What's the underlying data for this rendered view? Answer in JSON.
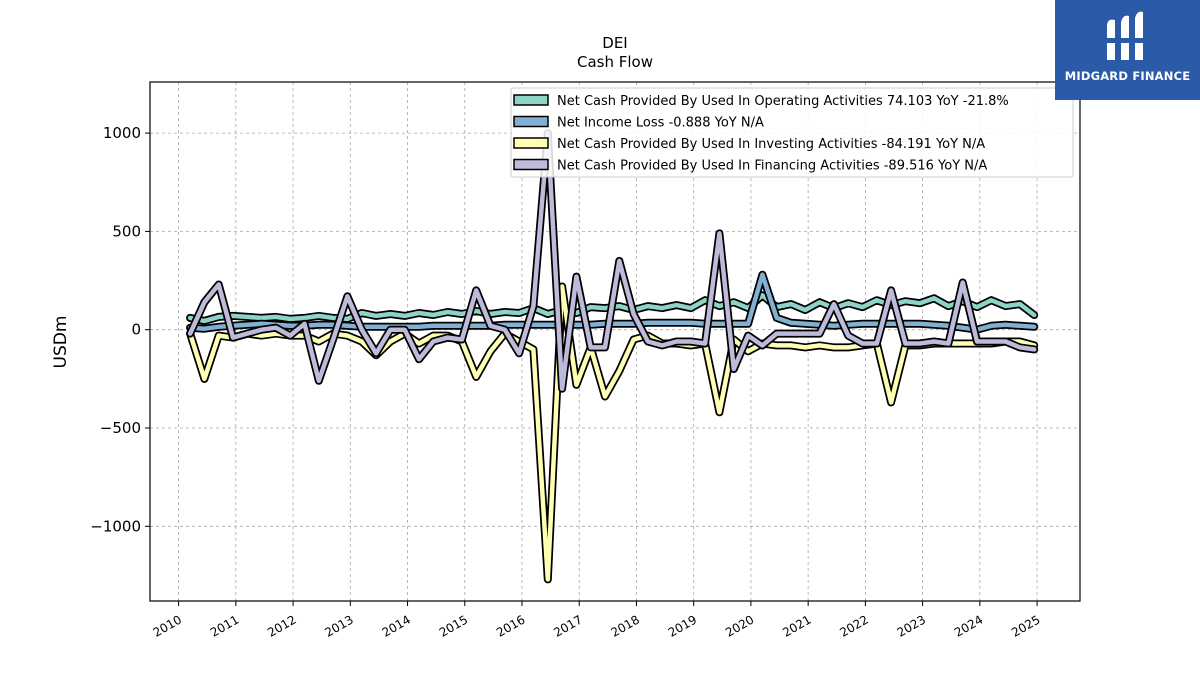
{
  "logo": {
    "text": "MIDGARD FINANCE",
    "icon": "midgard-logo-icon",
    "color": "#2a5aa8"
  },
  "chart_data": {
    "type": "line",
    "title": "DEI",
    "subtitle": "Cash Flow",
    "xlabel": "",
    "ylabel": "USDm",
    "xlim": [
      2009.5,
      2025.75
    ],
    "ylim": [
      -1380,
      1260
    ],
    "xticks": [
      "2010",
      "2011",
      "2012",
      "2013",
      "2014",
      "2015",
      "2016",
      "2017",
      "2018",
      "2019",
      "2020",
      "2021",
      "2022",
      "2023",
      "2024",
      "2025"
    ],
    "yticks": [
      {
        "value": 1000,
        "label": "1000"
      },
      {
        "value": 500,
        "label": "500"
      },
      {
        "value": 0,
        "label": "0"
      },
      {
        "value": -500,
        "label": "−500"
      },
      {
        "value": -1000,
        "label": "−1000"
      }
    ],
    "grid": true,
    "legend_position": "top-right",
    "x": [
      2010.2,
      2010.45,
      2010.7,
      2010.95,
      2011.2,
      2011.45,
      2011.7,
      2011.95,
      2012.2,
      2012.45,
      2012.7,
      2012.95,
      2013.2,
      2013.45,
      2013.7,
      2013.95,
      2014.2,
      2014.45,
      2014.7,
      2014.95,
      2015.2,
      2015.45,
      2015.7,
      2015.95,
      2016.2,
      2016.45,
      2016.7,
      2016.95,
      2017.2,
      2017.45,
      2017.7,
      2017.95,
      2018.2,
      2018.45,
      2018.7,
      2018.95,
      2019.2,
      2019.45,
      2019.7,
      2019.95,
      2020.2,
      2020.45,
      2020.7,
      2020.95,
      2021.2,
      2021.45,
      2021.7,
      2021.95,
      2022.2,
      2022.45,
      2022.7,
      2022.95,
      2023.2,
      2023.45,
      2023.7,
      2023.95,
      2024.2,
      2024.45,
      2024.7,
      2024.95
    ],
    "series": [
      {
        "name": "Net Cash Provided By Used In Operating Activities  74.103 YoY -21.8%",
        "color": "#8dd3c7",
        "values": [
          60,
          45,
          65,
          70,
          65,
          60,
          65,
          55,
          60,
          70,
          60,
          55,
          85,
          70,
          80,
          70,
          85,
          75,
          90,
          80,
          95,
          80,
          90,
          85,
          110,
          80,
          100,
          85,
          115,
          110,
          120,
          100,
          120,
          110,
          125,
          110,
          150,
          120,
          140,
          110,
          175,
          115,
          130,
          100,
          140,
          110,
          135,
          115,
          150,
          125,
          145,
          135,
          160,
          120,
          145,
          115,
          150,
          120,
          130,
          75
        ]
      },
      {
        "name": "Net Income Loss  -0.888 YoY N/A",
        "color": "#80b1d3",
        "values": [
          10,
          5,
          15,
          20,
          25,
          30,
          25,
          20,
          20,
          25,
          25,
          20,
          15,
          15,
          15,
          15,
          15,
          20,
          20,
          20,
          20,
          20,
          25,
          25,
          25,
          25,
          25,
          25,
          25,
          30,
          30,
          30,
          35,
          35,
          35,
          35,
          30,
          30,
          30,
          30,
          280,
          60,
          35,
          30,
          25,
          20,
          25,
          30,
          30,
          30,
          30,
          30,
          25,
          20,
          10,
          0,
          20,
          25,
          20,
          15
        ]
      },
      {
        "name": "Net Cash Provided By Used In Investing Activities  -84.191 YoY N/A",
        "color": "#ffffb3",
        "values": [
          -20,
          -250,
          -30,
          -40,
          -20,
          -30,
          -20,
          -30,
          -30,
          -60,
          -20,
          -30,
          -60,
          -130,
          -60,
          -20,
          -70,
          -30,
          -30,
          -60,
          -240,
          -110,
          -20,
          -60,
          -100,
          -1270,
          220,
          -280,
          -90,
          -340,
          -210,
          -50,
          -30,
          -70,
          -70,
          -80,
          -70,
          -420,
          -50,
          -110,
          -70,
          -80,
          -80,
          -90,
          -80,
          -90,
          -90,
          -80,
          -70,
          -370,
          -80,
          -80,
          -70,
          -70,
          -70,
          -70,
          -70,
          -60,
          -60,
          -80
        ]
      },
      {
        "name": "Net Cash Provided By Used In Financing Activities  -89.516 YoY N/A",
        "color": "#bebada",
        "values": [
          -20,
          140,
          230,
          -40,
          -20,
          0,
          10,
          -30,
          30,
          -260,
          -50,
          170,
          0,
          -120,
          0,
          0,
          -150,
          -60,
          -40,
          -50,
          200,
          20,
          0,
          -120,
          120,
          1000,
          -300,
          270,
          -90,
          -90,
          350,
          80,
          -60,
          -80,
          -60,
          -60,
          -70,
          490,
          -200,
          -30,
          -80,
          -20,
          -20,
          -20,
          -20,
          130,
          -30,
          -70,
          -70,
          200,
          -70,
          -70,
          -60,
          -70,
          240,
          -60,
          -60,
          -60,
          -90,
          -100
        ]
      }
    ]
  }
}
